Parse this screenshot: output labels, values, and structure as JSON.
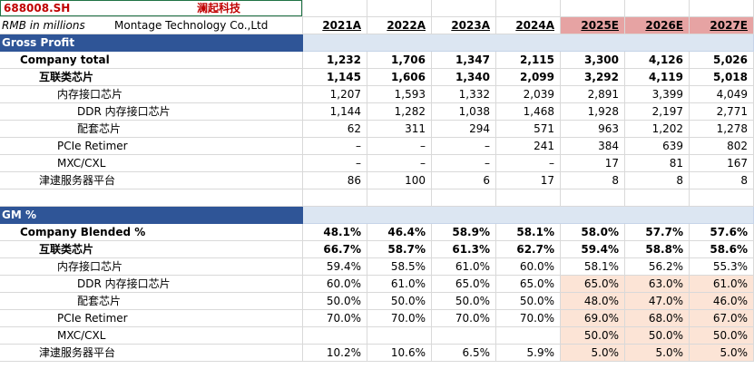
{
  "header": {
    "ticker": "688008.SH",
    "name_cn": "澜起科技",
    "units": "RMB in millions",
    "company": "Montage Technology Co.,Ltd",
    "years": [
      "2021A",
      "2022A",
      "2023A",
      "2024A",
      "2025E",
      "2026E",
      "2027E"
    ]
  },
  "sections": {
    "gross_profit": "Gross Profit",
    "gm": "GM %"
  },
  "gross_profit_rows": [
    {
      "label": "Company total",
      "values": [
        "1,232",
        "1,706",
        "1,347",
        "2,115",
        "3,300",
        "4,126",
        "5,026"
      ]
    },
    {
      "label": "互联类芯片",
      "values": [
        "1,145",
        "1,606",
        "1,340",
        "2,099",
        "3,292",
        "4,119",
        "5,018"
      ]
    },
    {
      "label": "内存接口芯片",
      "values": [
        "1,207",
        "1,593",
        "1,332",
        "2,039",
        "2,891",
        "3,399",
        "4,049"
      ]
    },
    {
      "label": "DDR 内存接口芯片",
      "values": [
        "1,144",
        "1,282",
        "1,038",
        "1,468",
        "1,928",
        "2,197",
        "2,771"
      ]
    },
    {
      "label": "配套芯片",
      "values": [
        "62",
        "311",
        "294",
        "571",
        "963",
        "1,202",
        "1,278"
      ]
    },
    {
      "label": "PCIe Retimer",
      "values": [
        "–",
        "–",
        "–",
        "241",
        "384",
        "639",
        "802"
      ]
    },
    {
      "label": "MXC/CXL",
      "values": [
        "–",
        "–",
        "–",
        "–",
        "17",
        "81",
        "167"
      ]
    },
    {
      "label": "津逮服务器平台",
      "values": [
        "86",
        "100",
        "6",
        "17",
        "8",
        "8",
        "8"
      ]
    }
  ],
  "gm_rows": [
    {
      "label": "Company Blended %",
      "values": [
        "48.1%",
        "46.4%",
        "58.9%",
        "58.1%",
        "58.0%",
        "57.7%",
        "57.6%"
      ]
    },
    {
      "label": "互联类芯片",
      "values": [
        "66.7%",
        "58.7%",
        "61.3%",
        "62.7%",
        "59.4%",
        "58.8%",
        "58.6%"
      ]
    },
    {
      "label": "内存接口芯片",
      "values": [
        "59.4%",
        "58.5%",
        "61.0%",
        "60.0%",
        "58.1%",
        "56.2%",
        "55.3%"
      ]
    },
    {
      "label": "DDR 内存接口芯片",
      "values": [
        "60.0%",
        "61.0%",
        "65.0%",
        "65.0%",
        "65.0%",
        "63.0%",
        "61.0%"
      ]
    },
    {
      "label": "配套芯片",
      "values": [
        "50.0%",
        "50.0%",
        "50.0%",
        "50.0%",
        "48.0%",
        "47.0%",
        "46.0%"
      ]
    },
    {
      "label": "PCIe Retimer",
      "values": [
        "70.0%",
        "70.0%",
        "70.0%",
        "70.0%",
        "69.0%",
        "68.0%",
        "67.0%"
      ]
    },
    {
      "label": "MXC/CXL",
      "values": [
        "",
        "",
        "",
        "",
        "50.0%",
        "50.0%",
        "50.0%"
      ]
    },
    {
      "label": "津逮服务器平台",
      "values": [
        "10.2%",
        "10.6%",
        "6.5%",
        "5.9%",
        "5.0%",
        "5.0%",
        "5.0%"
      ]
    }
  ],
  "colors": {
    "ticker": "#c00000",
    "section_band": "#2f5597",
    "estimate_header": "#e6a3a3",
    "input_highlight": "#fce4d6"
  }
}
